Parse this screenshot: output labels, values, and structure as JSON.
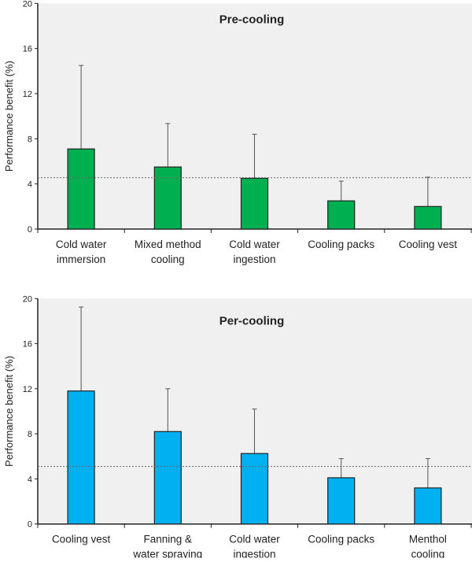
{
  "chart_data": [
    {
      "type": "bar",
      "title": "Pre-cooling",
      "ylabel": "Performance benefit (%)",
      "xlabel": "",
      "ylim": [
        0,
        20
      ],
      "yticks": [
        0,
        4,
        8,
        12,
        16,
        20
      ],
      "categories": [
        [
          "Cold water",
          "immersion"
        ],
        [
          "Mixed method",
          "cooling"
        ],
        [
          "Cold water",
          "ingestion"
        ],
        [
          "Cooling packs"
        ],
        [
          "Cooling vest"
        ]
      ],
      "values": [
        7.1,
        5.5,
        4.5,
        2.5,
        2.0
      ],
      "error_upper": [
        14.5,
        9.35,
        8.4,
        4.25,
        4.6
      ],
      "reference_line": 4.55,
      "bar_color": "#00b050",
      "plot_background": "#f0f0f0",
      "grid": false
    },
    {
      "type": "bar",
      "title": "Per-cooling",
      "ylabel": "Performance benefit (%)",
      "xlabel": "",
      "ylim": [
        0,
        20
      ],
      "yticks": [
        0,
        4,
        8,
        12,
        16,
        20
      ],
      "categories": [
        [
          "Cooling vest"
        ],
        [
          "Fanning &",
          "water spraying"
        ],
        [
          "Cold water",
          "ingestion"
        ],
        [
          "Cooling packs"
        ],
        [
          "Menthol",
          "cooling"
        ]
      ],
      "values": [
        11.8,
        8.2,
        6.25,
        4.1,
        3.2
      ],
      "error_upper": [
        19.25,
        12.0,
        10.2,
        5.8,
        5.8
      ],
      "reference_line": 5.1,
      "bar_color": "#00b0f0",
      "plot_background": "#f0f0f0",
      "grid": false
    }
  ]
}
